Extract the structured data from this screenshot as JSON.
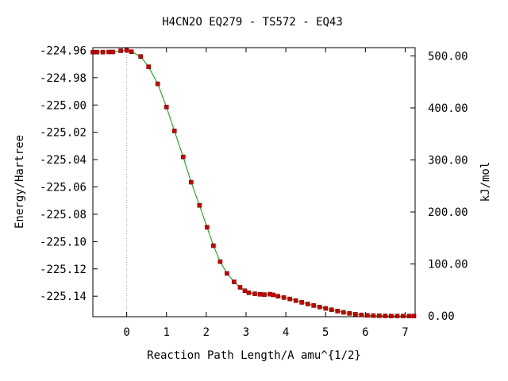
{
  "chart_data": {
    "type": "line",
    "title": "H4CN2O   EQ279 - TS572 - EQ43",
    "xlabel": "Reaction Path Length/A amu^{1/2}",
    "ylabel": "Energy/Hartree",
    "y2label": "kJ/mol",
    "xlim": [
      -0.85,
      7.25
    ],
    "ylim": [
      -225.155,
      -224.958
    ],
    "x_ticks": [
      0,
      1,
      2,
      3,
      4,
      5,
      6,
      7
    ],
    "x_tick_labels": [
      "0",
      "1",
      "2",
      "3",
      "4",
      "5",
      "6",
      "7"
    ],
    "y_ticks": [
      -224.96,
      -224.98,
      -225.0,
      -225.02,
      -225.04,
      -225.06,
      -225.08,
      -225.1,
      -225.12,
      -225.14
    ],
    "y_tick_labels": [
      "-224.96",
      "-224.98",
      "-225.00",
      "-225.02",
      "-225.04",
      "-225.06",
      "-225.08",
      "-225.10",
      "-225.12",
      "-225.14"
    ],
    "y2_ticks": [
      0,
      100,
      200,
      300,
      400,
      500
    ],
    "y2_tick_labels": [
      "0.00",
      "100.00",
      "200.00",
      "300.00",
      "400.00",
      "500.00"
    ],
    "y2_zero_hartree": -225.1545,
    "kj_per_hartree": 2625.5,
    "ts_marker_x": 0,
    "colors": {
      "line": "#00a000",
      "points": "#cc0000",
      "ts_marker": "#aaaaaa",
      "axis": "#000000"
    },
    "series": [
      {
        "values_x": [
          -0.85,
          -0.75,
          -0.6,
          -0.45,
          -0.35,
          -0.15,
          0.0,
          0.12,
          0.35,
          0.55,
          0.78,
          1.0,
          1.2,
          1.42,
          1.62,
          1.83,
          2.02,
          2.18,
          2.35,
          2.52,
          2.7,
          2.85,
          2.97,
          3.07,
          3.22,
          3.35,
          3.46,
          3.6,
          3.68,
          3.8,
          3.95,
          4.1,
          4.25,
          4.4,
          4.55,
          4.7,
          4.85,
          5.0,
          5.15,
          5.3,
          5.45,
          5.6,
          5.75,
          5.9,
          6.05,
          6.2,
          6.35,
          6.5,
          6.65,
          6.8,
          6.95,
          7.1,
          7.22
        ],
        "values_y": [
          -224.9613,
          -224.9613,
          -224.9613,
          -224.9612,
          -224.9612,
          -224.9603,
          -224.96,
          -224.961,
          -224.9645,
          -224.972,
          -224.9845,
          -225.0015,
          -225.019,
          -225.038,
          -225.0565,
          -225.0735,
          -225.0895,
          -225.103,
          -225.1147,
          -225.1233,
          -225.1295,
          -225.1335,
          -225.136,
          -225.1375,
          -225.1382,
          -225.1386,
          -225.1388,
          -225.1385,
          -225.139,
          -225.14,
          -225.141,
          -225.142,
          -225.1432,
          -225.1445,
          -225.1457,
          -225.1468,
          -225.1479,
          -225.1489,
          -225.1499,
          -225.1509,
          -225.1518,
          -225.1526,
          -225.1532,
          -225.1537,
          -225.154,
          -225.1542,
          -225.1543,
          -225.1544,
          -225.1545,
          -225.1545,
          -225.1545,
          -225.1545,
          -225.1545
        ]
      }
    ]
  }
}
